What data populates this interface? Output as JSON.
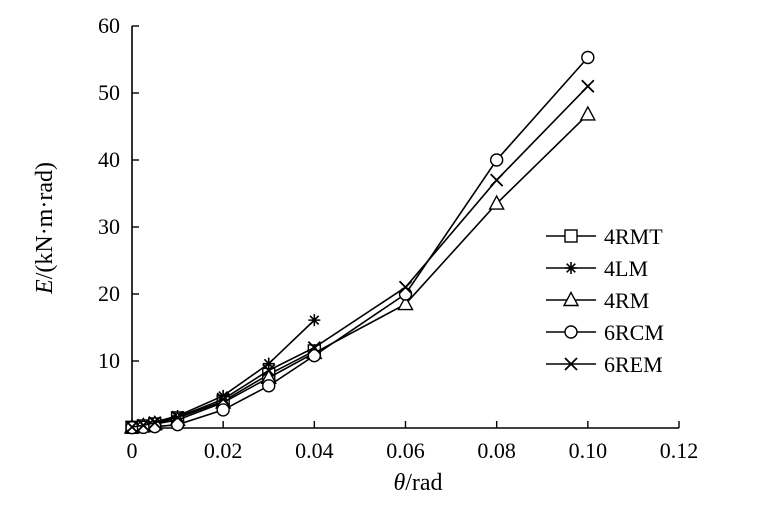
{
  "chart_data": {
    "type": "line",
    "xlabel_italic": "θ",
    "xlabel_rest": "/rad",
    "ylabel_italic": "E",
    "ylabel_rest": "/(kN·m·rad)",
    "xlim": [
      0,
      0.12
    ],
    "ylim": [
      0,
      60
    ],
    "x_ticks": [
      0,
      0.02,
      0.04,
      0.06,
      0.08,
      0.1,
      0.12
    ],
    "x_tick_labels": [
      "0",
      "0.02",
      "0.04",
      "0.06",
      "0.08",
      "0.10",
      "0.12"
    ],
    "y_ticks": [
      10,
      20,
      30,
      40,
      50,
      60
    ],
    "y_tick_labels": [
      "10",
      "20",
      "30",
      "40",
      "50",
      "60"
    ],
    "grid": false,
    "legend_position": "right",
    "series": [
      {
        "name": "4RMT",
        "marker": "square",
        "x": [
          0,
          0.0025,
          0.005,
          0.01,
          0.02,
          0.03,
          0.04
        ],
        "y": [
          0.1,
          0.3,
          0.6,
          1.5,
          4.0,
          8.0,
          11.5
        ]
      },
      {
        "name": "4LM",
        "marker": "asterisk",
        "x": [
          0,
          0.0025,
          0.005,
          0.01,
          0.02,
          0.03,
          0.04
        ],
        "y": [
          0.2,
          0.5,
          0.9,
          1.8,
          4.8,
          9.6,
          16.1
        ]
      },
      {
        "name": "4RM",
        "marker": "triangle",
        "x": [
          0,
          0.0025,
          0.005,
          0.01,
          0.02,
          0.03,
          0.04,
          0.06,
          0.08,
          0.1
        ],
        "y": [
          0.1,
          0.3,
          0.6,
          1.2,
          3.8,
          7.5,
          11.2,
          18.5,
          33.5,
          46.8
        ]
      },
      {
        "name": "6RCM",
        "marker": "circle",
        "x": [
          0,
          0.0025,
          0.005,
          0.01,
          0.02,
          0.03,
          0.04,
          0.06,
          0.08,
          0.1
        ],
        "y": [
          0.05,
          0.1,
          0.2,
          0.5,
          2.7,
          6.3,
          10.8,
          20.0,
          40.0,
          55.3
        ]
      },
      {
        "name": "6REM",
        "marker": "x",
        "x": [
          0,
          0.0025,
          0.005,
          0.01,
          0.02,
          0.03,
          0.04,
          0.06,
          0.08,
          0.1
        ],
        "y": [
          0.15,
          0.4,
          0.8,
          1.6,
          4.3,
          8.6,
          12.0,
          21.0,
          37.0,
          51.0
        ]
      }
    ]
  }
}
